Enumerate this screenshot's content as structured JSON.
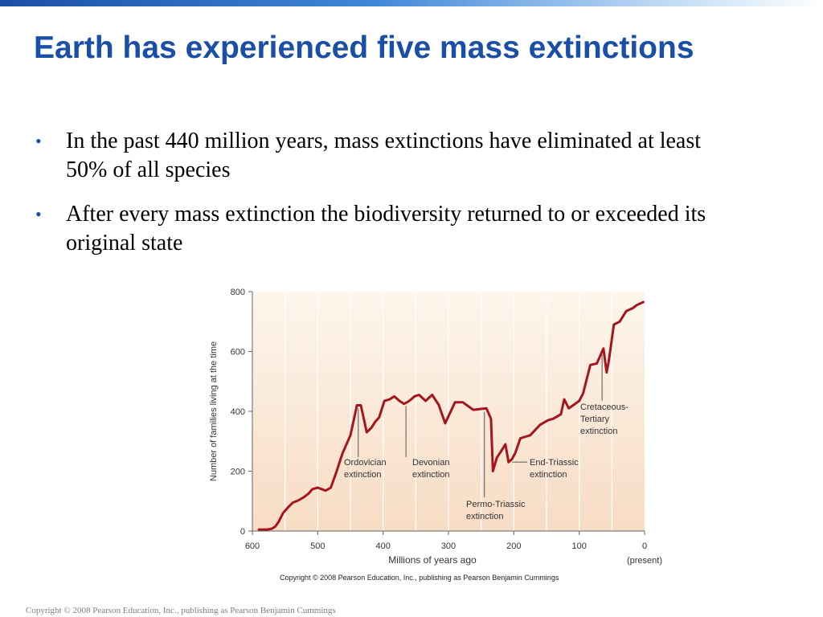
{
  "slide": {
    "title": "Earth has experienced five mass extinctions",
    "bullets": [
      "In the past 440 million years, mass extinctions have eliminated at least 50% of all species",
      "After every mass extinction the biodiversity returned to or exceeded its original state"
    ],
    "footer": "Copyright © 2008 Pearson Education, Inc., publishing as Pearson Benjamin Cummings"
  },
  "colors": {
    "title": "#1a4fa8",
    "line": "#a3161d",
    "plot_bg_top": "#fdf6ec",
    "plot_bg_bottom": "#f7dcc4"
  },
  "chart_data": {
    "type": "line",
    "title": "",
    "xlabel": "Millions of years ago",
    "ylabel": "Number of families living at the time",
    "xlim": [
      600,
      0
    ],
    "ylim": [
      0,
      800
    ],
    "xticks": [
      600,
      500,
      400,
      300,
      200,
      100,
      0
    ],
    "yticks": [
      0,
      200,
      400,
      600,
      800
    ],
    "present_label": "(present)",
    "copyright": "Copyright © 2008 Pearson Education, Inc., publishing as Pearson Benjamin Cummings",
    "grid": true,
    "series": [
      {
        "x": [
          590,
          577,
          570,
          565,
          560,
          553,
          545,
          538,
          530,
          522,
          514,
          508,
          500,
          494,
          488,
          480,
          471,
          462,
          450,
          440,
          434,
          425,
          418,
          412,
          406,
          398,
          390,
          383,
          375,
          368,
          362,
          357,
          352,
          345,
          335,
          325,
          315,
          305,
          290,
          278,
          262,
          242,
          235,
          232,
          226,
          220,
          213,
          208,
          203,
          198,
          190,
          175,
          160,
          148,
          140,
          128,
          123,
          116,
          100,
          94,
          83,
          73,
          63,
          58,
          55,
          47,
          38,
          28,
          18,
          12,
          2
        ],
        "y": [
          5,
          5,
          8,
          15,
          30,
          60,
          80,
          95,
          102,
          112,
          125,
          140,
          145,
          140,
          135,
          145,
          200,
          260,
          320,
          420,
          420,
          330,
          345,
          365,
          380,
          435,
          440,
          450,
          435,
          425,
          432,
          440,
          450,
          455,
          435,
          455,
          422,
          360,
          430,
          430,
          405,
          410,
          375,
          200,
          245,
          265,
          290,
          230,
          240,
          260,
          310,
          320,
          355,
          370,
          375,
          390,
          440,
          410,
          435,
          460,
          555,
          560,
          610,
          530,
          565,
          690,
          700,
          735,
          745,
          755,
          765
        ]
      }
    ],
    "annotations": [
      {
        "label": [
          "Ordovician",
          "extinction"
        ],
        "x": 438
      },
      {
        "label": [
          "Devonian",
          "extinction"
        ],
        "x": 365
      },
      {
        "label": [
          "Permo-Triassic",
          "extinction"
        ],
        "x": 245
      },
      {
        "label": [
          "End-Triassic",
          "extinction"
        ],
        "x": 205
      },
      {
        "label": [
          "Cretaceous-",
          "Tertiary",
          "extinction"
        ],
        "x": 65
      }
    ]
  }
}
